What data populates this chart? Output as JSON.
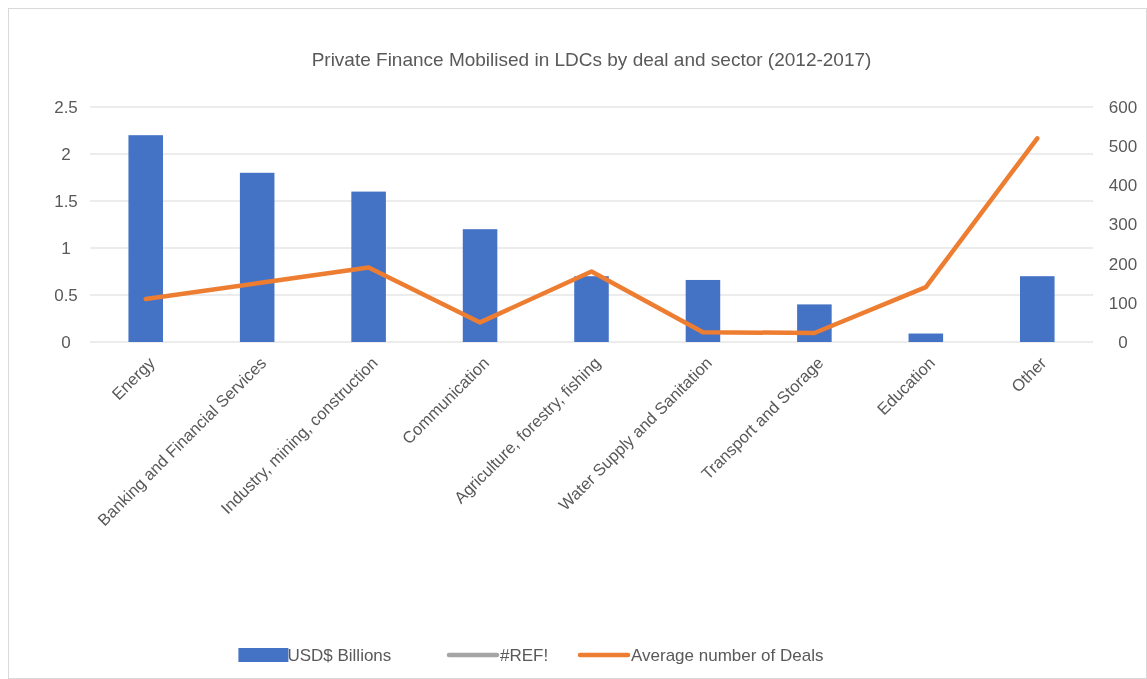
{
  "chart_data": {
    "type": "bar",
    "title": "Private Finance Mobilised in LDCs by deal and sector (2012-2017)",
    "categories": [
      "Energy",
      "Banking and Financial Services",
      "Industry, mining, construction",
      "Communication",
      "Agriculture, forestry, fishing",
      "Water Supply and Sanitation",
      "Transport and Storage",
      "Education",
      "Other"
    ],
    "series": [
      {
        "name": "USD$ Billions",
        "color": "#4472c4",
        "values": [
          2.2,
          1.8,
          1.6,
          1.2,
          0.7,
          0.66,
          0.4,
          0.09,
          0.7
        ]
      },
      {
        "name": "#REF!",
        "type": "line",
        "color": "#a5a5a5",
        "values": [
          null,
          null,
          null,
          null,
          null,
          null,
          null,
          null,
          null
        ]
      },
      {
        "name": "Average number of Deals",
        "type": "line",
        "axis": "y2",
        "color": "#ed7d31",
        "values": [
          110,
          150,
          190,
          50,
          180,
          25,
          23,
          140,
          520
        ]
      }
    ],
    "ylim": [
      0,
      2.5
    ],
    "yticks": [
      0,
      0.5,
      1,
      1.5,
      2,
      2.5
    ],
    "y2lim": [
      0,
      600
    ],
    "y2ticks": [
      0,
      100,
      200,
      300,
      400,
      500,
      600
    ],
    "grid": "y",
    "legend": "bottom",
    "marker": "none",
    "line_style": "solid"
  }
}
